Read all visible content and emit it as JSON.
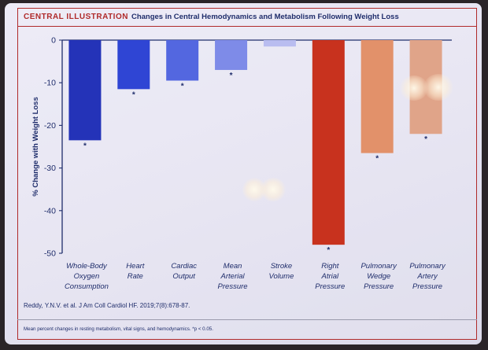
{
  "header": {
    "label": "CENTRAL ILLUSTRATION",
    "title": "Changes in Central Hemodynamics and Metabolism Following Weight Loss"
  },
  "citation": "Reddy, Y.N.V. et al. J Am Coll Cardiol HF. 2019;7(8):678-87.",
  "footnote": "Mean percent changes in resting metabolism, vital signs, and hemodynamics. *p < 0.05.",
  "colors": {
    "frame": "#b02a2a",
    "text": "#1f2d6b",
    "blue_dark": "#2433b8",
    "blue_mid": "#2f45d4",
    "blue_soft": "#5367e0",
    "blue_light": "#7e8be8",
    "blue_pale": "#b9bdf0",
    "red": "#c8321e",
    "orange": "#e2916a",
    "salmon": "#e0a489"
  },
  "chart_data": {
    "type": "bar",
    "title": "Changes in Central Hemodynamics and Metabolism Following Weight Loss",
    "ylabel": "% Change with Weight Loss",
    "xlabel": "",
    "ylim": [
      -50,
      0
    ],
    "yticks": [
      0,
      -10,
      -20,
      -30,
      -40,
      -50
    ],
    "grid": false,
    "categories": [
      [
        "Whole-Body",
        "Oxygen",
        "Consumption"
      ],
      [
        "Heart",
        "Rate"
      ],
      [
        "Cardiac",
        "Output"
      ],
      [
        "Mean",
        "Arterial",
        "Pressure"
      ],
      [
        "Stroke",
        "Volume"
      ],
      [
        "Right",
        "Atrial",
        "Pressure"
      ],
      [
        "Pulmonary",
        "Wedge",
        "Pressure"
      ],
      [
        "Pulmonary",
        "Artery",
        "Pressure"
      ]
    ],
    "values": [
      -23.5,
      -11.5,
      -9.5,
      -7,
      -1.5,
      -48,
      -26.5,
      -22
    ],
    "significant": [
      true,
      true,
      true,
      true,
      false,
      true,
      true,
      true
    ],
    "colors": [
      "#2433b8",
      "#2f45d4",
      "#5367e0",
      "#7e8be8",
      "#b9bdf0",
      "#c8321e",
      "#e2916a",
      "#e0a489"
    ]
  }
}
